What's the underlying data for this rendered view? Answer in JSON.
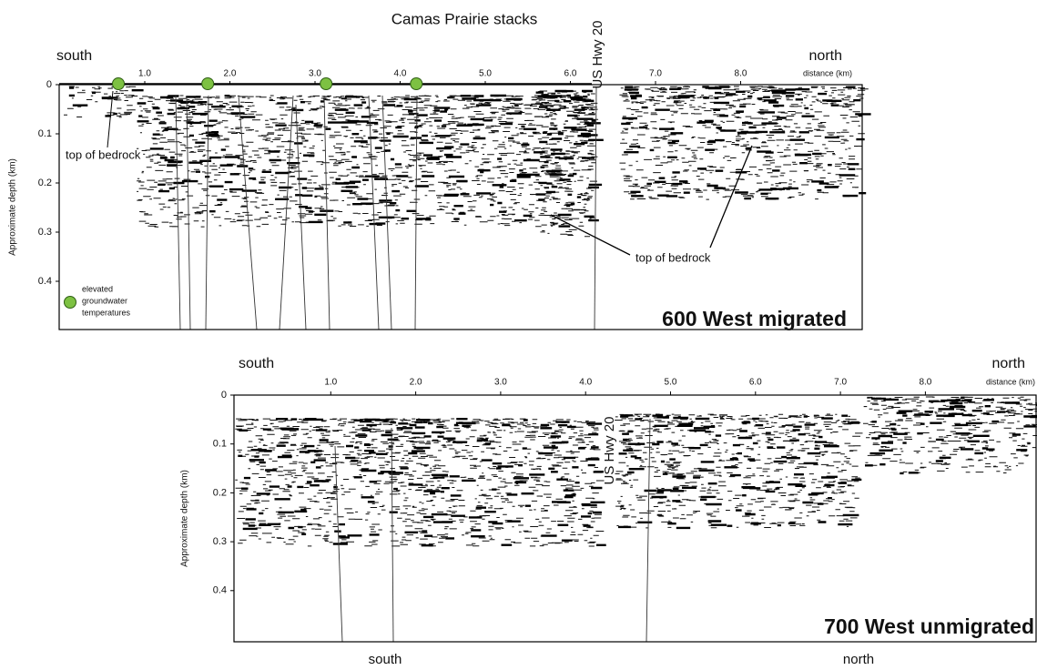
{
  "title": "Camas Prairie stacks",
  "panels": [
    {
      "name": "600 West migrated",
      "left_label": "south",
      "right_label": "north",
      "x_axis_label": "distance (km)",
      "y_axis_label": "Approximate depth (km)",
      "road_label": "US Hwy 20",
      "xticks": [
        {
          "value": 1,
          "label": "1.0"
        },
        {
          "value": 2,
          "label": "2.0"
        },
        {
          "value": 3,
          "label": "3.0"
        },
        {
          "value": 4,
          "label": "4.0"
        },
        {
          "value": 5,
          "label": "5.0"
        },
        {
          "value": 6,
          "label": "6.0"
        },
        {
          "value": 7,
          "label": "7.0"
        },
        {
          "value": 8,
          "label": "8.0"
        }
      ],
      "yticks": [
        0,
        0.1,
        0.2,
        0.3,
        0.4
      ],
      "groundwater_sites": [
        0.69,
        1.74,
        3.13,
        4.19
      ],
      "annotations": [
        "top of bedrock",
        "top of bedrock"
      ],
      "legend": [
        "elevated",
        "groundwater",
        "temperatures"
      ]
    },
    {
      "name": "700 West unmigrated",
      "left_label": "south",
      "right_label": "north",
      "x_axis_label": "distance (km)",
      "y_axis_label": "Approximate depth (km)",
      "road_label": "US Hwy 20",
      "xticks": [
        {
          "value": 1,
          "label": "1.0"
        },
        {
          "value": 2,
          "label": "2.0"
        },
        {
          "value": 3,
          "label": "3.0"
        },
        {
          "value": 4,
          "label": "4.0"
        },
        {
          "value": 5,
          "label": "5.0"
        },
        {
          "value": 6,
          "label": "6.0"
        },
        {
          "value": 7,
          "label": "7.0"
        },
        {
          "value": 8,
          "label": "8.0"
        }
      ],
      "yticks": [
        0,
        0.1,
        0.2,
        0.3,
        0.4
      ],
      "bottom_labels": [
        "south",
        "north"
      ]
    }
  ]
}
